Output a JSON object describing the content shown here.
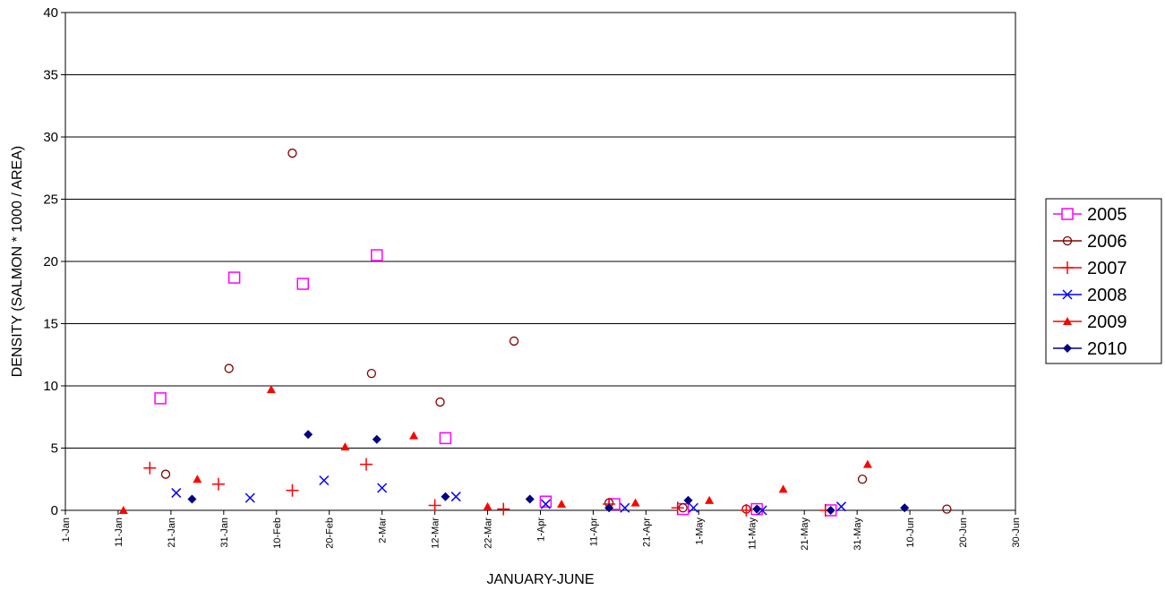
{
  "chart_data": {
    "type": "scatter",
    "title": "",
    "xlabel": "JANUARY-JUNE",
    "ylabel": "DENSITY (SALMON * 1000 / AREA)",
    "ylim": [
      0,
      40
    ],
    "yticks": [
      0,
      5,
      10,
      15,
      20,
      25,
      30,
      35,
      40
    ],
    "x_unit": "day of year (1 = 1-Jan)",
    "xlim": [
      1,
      181
    ],
    "xtick_labels": [
      "1-Jan",
      "11-Jan",
      "21-Jan",
      "31-Jan",
      "10-Feb",
      "20-Feb",
      "2-Mar",
      "12-Mar",
      "22-Mar",
      "1-Apr",
      "11-Apr",
      "21-Apr",
      "1-May",
      "11-May",
      "21-May",
      "31-May",
      "10-Jun",
      "20-Jun",
      "30-Jun"
    ],
    "xtick_values": [
      1,
      11,
      21,
      31,
      41,
      51,
      61,
      71,
      81,
      91,
      101,
      111,
      121,
      131,
      141,
      151,
      161,
      171,
      181
    ],
    "grid": "horizontal",
    "legend_position": "right",
    "series": [
      {
        "name": "2005",
        "marker": "square-open",
        "color": "#FF00FF",
        "points": [
          [
            19,
            9.0
          ],
          [
            33,
            18.7
          ],
          [
            46,
            18.2
          ],
          [
            60,
            20.5
          ],
          [
            73,
            5.8
          ],
          [
            92,
            0.7
          ],
          [
            105,
            0.5
          ],
          [
            118,
            0.1
          ],
          [
            132,
            0.1
          ],
          [
            146,
            0.0
          ]
        ]
      },
      {
        "name": "2006",
        "marker": "circle-open",
        "color": "#800000",
        "points": [
          [
            20,
            2.9
          ],
          [
            32,
            11.4
          ],
          [
            44,
            28.7
          ],
          [
            59,
            11.0
          ],
          [
            72,
            8.7
          ],
          [
            86,
            13.6
          ],
          [
            104,
            0.6
          ],
          [
            118,
            0.2
          ],
          [
            130,
            0.1
          ],
          [
            152,
            2.5
          ],
          [
            168,
            0.1
          ]
        ]
      },
      {
        "name": "2007",
        "marker": "plus",
        "color": "#FF0000",
        "points": [
          [
            17,
            3.4
          ],
          [
            30,
            2.1
          ],
          [
            44,
            1.6
          ],
          [
            58,
            3.7
          ],
          [
            71,
            0.4
          ],
          [
            84,
            0.1
          ],
          [
            104,
            0.5
          ],
          [
            117,
            0.2
          ],
          [
            130,
            0.0
          ],
          [
            145,
            0.0
          ]
        ]
      },
      {
        "name": "2008",
        "marker": "x",
        "color": "#0000FF",
        "points": [
          [
            22,
            1.4
          ],
          [
            36,
            1.0
          ],
          [
            50,
            2.4
          ],
          [
            61,
            1.8
          ],
          [
            75,
            1.1
          ],
          [
            92,
            0.5
          ],
          [
            107,
            0.2
          ],
          [
            120,
            0.2
          ],
          [
            133,
            0.0
          ],
          [
            148,
            0.3
          ]
        ]
      },
      {
        "name": "2009",
        "marker": "triangle",
        "color": "#FF0000",
        "points": [
          [
            12,
            0.0
          ],
          [
            26,
            2.5
          ],
          [
            40,
            9.7
          ],
          [
            54,
            5.1
          ],
          [
            67,
            6.0
          ],
          [
            81,
            0.3
          ],
          [
            95,
            0.5
          ],
          [
            109,
            0.6
          ],
          [
            123,
            0.8
          ],
          [
            137,
            1.7
          ],
          [
            153,
            3.7
          ]
        ]
      },
      {
        "name": "2010",
        "marker": "diamond",
        "color": "#000080",
        "points": [
          [
            25,
            0.9
          ],
          [
            47,
            6.1
          ],
          [
            60,
            5.7
          ],
          [
            73,
            1.1
          ],
          [
            89,
            0.9
          ],
          [
            104,
            0.2
          ],
          [
            119,
            0.8
          ],
          [
            132,
            0.1
          ],
          [
            146,
            0.0
          ],
          [
            160,
            0.2
          ]
        ]
      }
    ]
  }
}
